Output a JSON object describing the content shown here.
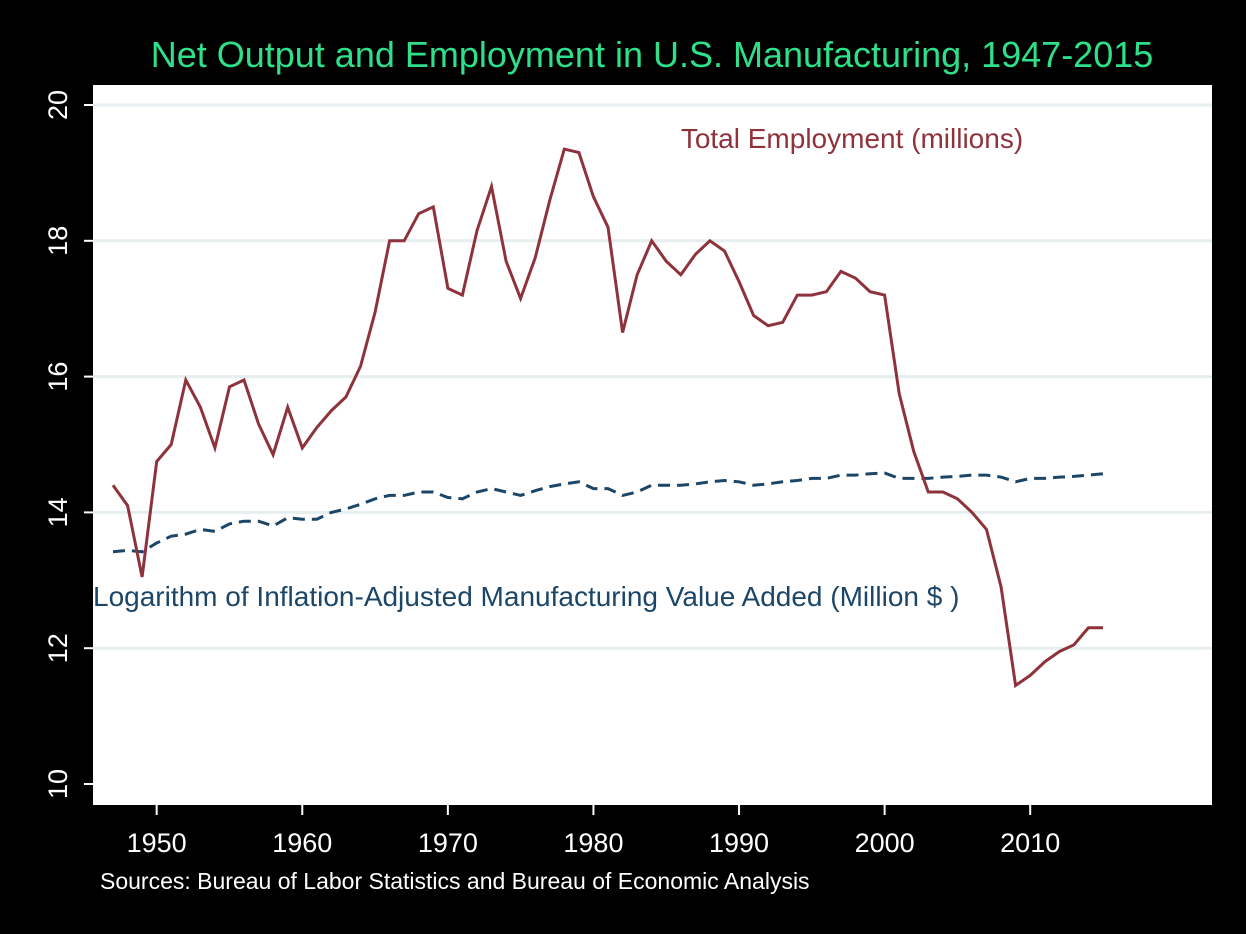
{
  "chart_data": {
    "type": "line",
    "title": "Net Output and Employment in U.S. Manufacturing, 1947-2015",
    "source_note": "Sources: Bureau of Labor Statistics and Bureau of Economic Analysis",
    "xlabel": "",
    "ylabel": "",
    "xlim": [
      1947,
      2015
    ],
    "ylim": [
      10,
      20
    ],
    "x_ticks": [
      1950,
      1960,
      1970,
      1980,
      1990,
      2000,
      2010
    ],
    "y_ticks": [
      10,
      12,
      14,
      16,
      18,
      20
    ],
    "grid": true,
    "legend": "none",
    "colors": {
      "background": "#000000",
      "plot_area": "#ffffff",
      "grid": "#e6eef0",
      "title": "#2ee08a",
      "employment": "#8e333b",
      "value_added": "#1c4668",
      "axis_text": "#ffffff"
    },
    "x": [
      1947,
      1948,
      1949,
      1950,
      1951,
      1952,
      1953,
      1954,
      1955,
      1956,
      1957,
      1958,
      1959,
      1960,
      1961,
      1962,
      1963,
      1964,
      1965,
      1966,
      1967,
      1968,
      1969,
      1970,
      1971,
      1972,
      1973,
      1974,
      1975,
      1976,
      1977,
      1978,
      1979,
      1980,
      1981,
      1982,
      1983,
      1984,
      1985,
      1986,
      1987,
      1988,
      1989,
      1990,
      1991,
      1992,
      1993,
      1994,
      1995,
      1996,
      1997,
      1998,
      1999,
      2000,
      2001,
      2002,
      2003,
      2004,
      2005,
      2006,
      2007,
      2008,
      2009,
      2010,
      2011,
      2012,
      2013,
      2014,
      2015
    ],
    "series": [
      {
        "name": "Total Employment (millions)",
        "style": "solid",
        "values": [
          14.4,
          14.1,
          13.05,
          14.75,
          15.0,
          15.95,
          15.55,
          14.95,
          15.85,
          15.95,
          15.3,
          14.85,
          15.55,
          14.95,
          15.25,
          15.5,
          15.7,
          16.15,
          16.95,
          18.0,
          18.0,
          18.4,
          18.5,
          17.3,
          17.2,
          18.15,
          18.8,
          17.7,
          17.15,
          17.75,
          18.6,
          19.35,
          19.3,
          18.65,
          18.2,
          16.65,
          17.5,
          18.0,
          17.7,
          17.5,
          17.8,
          18.0,
          17.85,
          17.4,
          16.9,
          16.75,
          16.8,
          17.2,
          17.2,
          17.25,
          17.55,
          17.45,
          17.25,
          17.2,
          15.75,
          14.9,
          14.3,
          14.3,
          14.2,
          14.0,
          13.75,
          12.9,
          11.45,
          11.6,
          11.8,
          11.95,
          12.05,
          12.3,
          12.3
        ]
      },
      {
        "name": "Logarithm of Inflation-Adjusted Manufacturing Value Added (Million $ )",
        "style": "dashed",
        "values": [
          13.42,
          13.44,
          13.42,
          13.55,
          13.65,
          13.68,
          13.75,
          13.72,
          13.83,
          13.87,
          13.87,
          13.8,
          13.92,
          13.9,
          13.9,
          14.0,
          14.05,
          14.12,
          14.2,
          14.25,
          14.25,
          14.3,
          14.3,
          14.22,
          14.2,
          14.3,
          14.35,
          14.3,
          14.25,
          14.32,
          14.38,
          14.42,
          14.45,
          14.35,
          14.35,
          14.25,
          14.3,
          14.4,
          14.4,
          14.4,
          14.42,
          14.45,
          14.47,
          14.45,
          14.4,
          14.42,
          14.45,
          14.47,
          14.5,
          14.5,
          14.55,
          14.55,
          14.57,
          14.58,
          14.5,
          14.5,
          14.5,
          14.52,
          14.53,
          14.55,
          14.55,
          14.52,
          14.45,
          14.5,
          14.5,
          14.52,
          14.53,
          14.55,
          14.57
        ]
      }
    ],
    "annotations": [
      {
        "text": "Total Employment (millions)",
        "series": 0,
        "near_x": 1988,
        "near_y": 19.4
      },
      {
        "text": "Logarithm of Inflation-Adjusted Manufacturing Value Added (Million $ )",
        "series": 1,
        "near_x": 1977,
        "near_y": 12.8
      }
    ]
  }
}
